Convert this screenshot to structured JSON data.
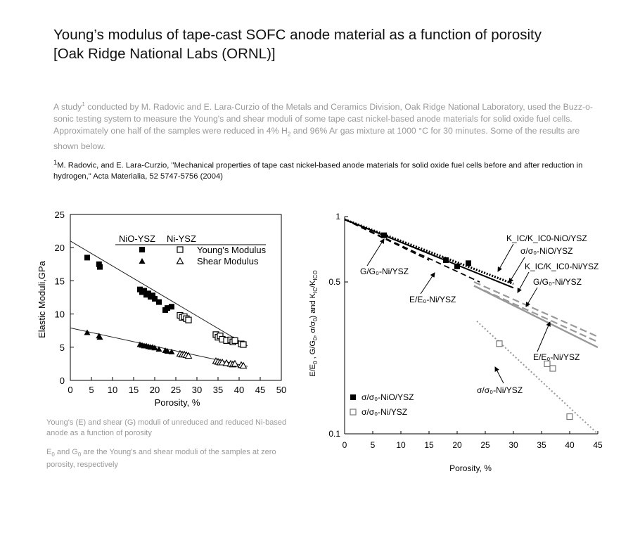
{
  "header": {
    "title_line1": "Young’s modulus of tape-cast SOFC anode material as a function of porosity",
    "title_line2": "[Oak Ridge National Labs (ORNL)]"
  },
  "intro": {
    "part1": "A study",
    "sup1": "1",
    "part2": " conducted by M. Radovic and E. Lara-Curzio of the Metals and Ceramics Division, Oak Ridge National Laboratory, used the Buzz-o-sonic testing system to measure the Young's and shear moduli of some tape cast nickel-based anode materials for solid oxide fuel cells. Approximately one half of the samples were reduced in 4% H",
    "sub1": "2",
    "part3": " and 96% Ar gas mixture at 1000 °C for 30 minutes. Some of the results are shown below."
  },
  "reference": {
    "sup": "1",
    "text": "M. Radovic, and E. Lara-Curzio, \"Mechanical properties of tape cast nickel-based anode materials for solid oxide fuel cells before and after reduction in hydrogen,\" Acta Materialia, 52 5747-5756 (2004)"
  },
  "captions": {
    "cap1": "Young's (E) and shear (G) moduli of unreduced and reduced Ni-based anode as a function of porosity",
    "cap2_e": "E",
    "cap2_sub1": "0",
    "cap2_and": " and G",
    "cap2_sub2": "0",
    "cap2_rest": " are the Young's and shear moduli of the samples at zero porosity, respectively"
  },
  "chart_data": [
    {
      "type": "scatter",
      "xlabel": "Porosity, %",
      "ylabel": "Elastic Moduli,GPa",
      "xlim": [
        0,
        50
      ],
      "ylim": [
        0,
        25
      ],
      "xticks": [
        "0",
        "5",
        "10",
        "15",
        "20",
        "25",
        "30",
        "35",
        "40",
        "45",
        "50"
      ],
      "yticks": [
        "0",
        "5",
        "10",
        "15",
        "20",
        "25"
      ],
      "legend": {
        "col1": "NiO-YSZ",
        "col2": "Ni-YSZ",
        "row1": "Young's Modulus",
        "row2": "Shear Modulus"
      },
      "series": [
        {
          "name": "Young's Modulus",
          "label_group": "NiO-YSZ",
          "marker": "filled-square",
          "points": [
            [
              4,
              18.5
            ],
            [
              6.8,
              17.5
            ],
            [
              7,
              17.1
            ],
            [
              16.5,
              13.7
            ],
            [
              17,
              13.3
            ],
            [
              17.5,
              13.5
            ],
            [
              18,
              12.9
            ],
            [
              18.5,
              13.1
            ],
            [
              19,
              12.6
            ],
            [
              19.5,
              12.8
            ],
            [
              20,
              12.3
            ],
            [
              21,
              11.8
            ],
            [
              22.5,
              10.6
            ],
            [
              23,
              10.9
            ],
            [
              24,
              11.1
            ]
          ]
        },
        {
          "name": "Young's Modulus",
          "label_group": "Ni-YSZ",
          "marker": "open-square",
          "points": [
            [
              26,
              9.8
            ],
            [
              26.5,
              9.5
            ],
            [
              27,
              9.6
            ],
            [
              27.5,
              9.3
            ],
            [
              28,
              9.1
            ],
            [
              34.5,
              6.9
            ],
            [
              35,
              6.5
            ],
            [
              35.5,
              6.7
            ],
            [
              36,
              6.2
            ],
            [
              37,
              6.0
            ],
            [
              38,
              6.1
            ],
            [
              38.5,
              5.8
            ],
            [
              39,
              6.0
            ],
            [
              40.5,
              5.5
            ],
            [
              41,
              5.4
            ]
          ]
        },
        {
          "name": "Shear Modulus",
          "label_group": "NiO-YSZ",
          "marker": "filled-triangle",
          "points": [
            [
              4,
              7.2
            ],
            [
              6.8,
              6.7
            ],
            [
              7,
              6.5
            ],
            [
              16.5,
              5.4
            ],
            [
              17,
              5.3
            ],
            [
              17.5,
              5.2
            ],
            [
              18,
              5.2
            ],
            [
              18.5,
              5.1
            ],
            [
              19,
              5.0
            ],
            [
              19.5,
              5.0
            ],
            [
              20,
              4.9
            ],
            [
              21,
              4.7
            ],
            [
              22.5,
              4.5
            ],
            [
              23,
              4.4
            ],
            [
              24,
              4.3
            ]
          ]
        },
        {
          "name": "Shear Modulus",
          "label_group": "Ni-YSZ",
          "marker": "open-triangle",
          "points": [
            [
              26,
              4.0
            ],
            [
              26.5,
              3.9
            ],
            [
              27,
              3.9
            ],
            [
              27.5,
              3.8
            ],
            [
              28,
              3.7
            ],
            [
              34.5,
              2.9
            ],
            [
              35,
              2.8
            ],
            [
              35.5,
              2.7
            ],
            [
              36,
              2.7
            ],
            [
              37,
              2.6
            ],
            [
              38,
              2.5
            ],
            [
              38.5,
              2.4
            ],
            [
              39,
              2.5
            ],
            [
              40.5,
              2.3
            ],
            [
              41,
              2.2
            ]
          ]
        }
      ],
      "fit_lines": [
        {
          "series": "Young's Modulus",
          "points": [
            [
              0,
              21.0
            ],
            [
              42,
              5.2
            ]
          ]
        },
        {
          "series": "Shear Modulus",
          "points": [
            [
              0,
              7.9
            ],
            [
              42,
              2.1
            ]
          ]
        }
      ]
    },
    {
      "type": "scatter",
      "xlabel": "Porosity, %",
      "ylabel_parts": {
        "e": "E/E",
        "s0": "0",
        "g": " ,  G/G",
        "s1": "0",
        "sig": ", σ/σ",
        "s2": "0",
        "k": ") and K",
        "s3": "IC",
        "kk": "/K",
        "s4": "ICO"
      },
      "xlim": [
        0,
        45
      ],
      "ylim": [
        0.1,
        1
      ],
      "yscale": "log",
      "xticks": [
        "0",
        "5",
        "10",
        "15",
        "20",
        "25",
        "30",
        "35",
        "40",
        "45"
      ],
      "yticks": [
        "1",
        "0.5",
        "0.1"
      ],
      "legend": {
        "row1": "σ/σ₀-NiO/YSZ",
        "row2": "σ/σ₀-Ni/YSZ"
      },
      "annotations": {
        "kic_nio": "K_IC/K_IC0-NiO/YSZ",
        "sig_nio": "σ/σ₀-NiO/YSZ",
        "kic_ni": "K_IC/K_IC0-Ni/YSZ",
        "g_ni_right": "G/G₀-Ni/YSZ",
        "g_ni_left": "G/G₀-Ni/YSZ",
        "e_ni_upper": "E/E₀-Ni/YSZ",
        "e_ni_lower": "E/E₀-Ni/YSZ",
        "sig_ni": "σ/σ₀-Ni/YSZ"
      },
      "series": [
        {
          "name": "σ/σ₀-NiO/YSZ",
          "marker": "filled-square",
          "points": [
            [
              7,
              0.82
            ],
            [
              18,
              0.63
            ],
            [
              20,
              0.59
            ],
            [
              22,
              0.61
            ]
          ]
        },
        {
          "name": "σ/σ₀-Ni/YSZ",
          "marker": "open-square",
          "points": [
            [
              27.5,
              0.26
            ],
            [
              36,
              0.21
            ],
            [
              37,
              0.2
            ],
            [
              40,
              0.12
            ]
          ]
        }
      ],
      "lines": [
        {
          "id": "kic-nio",
          "style": "dotted-thick",
          "points": [
            [
              0,
              0.97
            ],
            [
              30,
              0.49
            ]
          ]
        },
        {
          "id": "sig-nio",
          "style": "solid-black",
          "points": [
            [
              0,
              0.97
            ],
            [
              30,
              0.47
            ]
          ]
        },
        {
          "id": "g-nio",
          "style": "dashed-black",
          "points": [
            [
              0,
              0.97
            ],
            [
              15,
              0.63
            ]
          ]
        },
        {
          "id": "e-nio",
          "style": "dashed-black",
          "points": [
            [
              0,
              0.97
            ],
            [
              24,
              0.5
            ]
          ]
        },
        {
          "id": "kic-ni",
          "style": "dashed-gray",
          "points": [
            [
              23,
              0.5
            ],
            [
              45,
              0.28
            ]
          ]
        },
        {
          "id": "g-ni",
          "style": "dashed-gray",
          "points": [
            [
              23,
              0.48
            ],
            [
              45,
              0.265
            ]
          ]
        },
        {
          "id": "e-ni",
          "style": "solid-gray",
          "points": [
            [
              23,
              0.48
            ],
            [
              45,
              0.25
            ]
          ]
        },
        {
          "id": "sig-ni",
          "style": "dotted-gray",
          "points": [
            [
              23.5,
              0.33
            ],
            [
              45,
              0.1
            ]
          ]
        }
      ]
    }
  ]
}
